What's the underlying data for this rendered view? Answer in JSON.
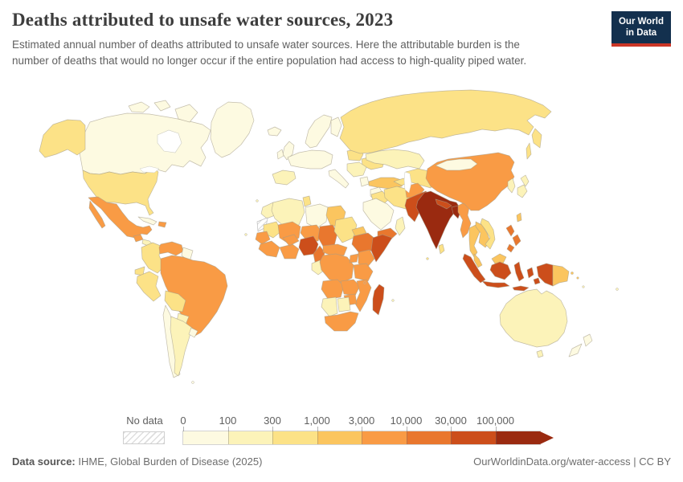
{
  "header": {
    "title": "Deaths attributed to unsafe water sources, 2023",
    "subtitle": "Estimated annual number of deaths attributed to unsafe water sources. Here the attributable burden is the number of deaths that would no longer occur if the entire population had access to high-quality piped water.",
    "logo": {
      "line1": "Our World",
      "line2": "in Data",
      "navy": "#13304e",
      "red": "#cb3626"
    }
  },
  "legend": {
    "no_data_label": "No data",
    "ticks": [
      "0",
      "100",
      "300",
      "1,000",
      "3,000",
      "10,000",
      "30,000",
      "100,000"
    ],
    "colors": [
      "#fdfae1",
      "#fcf3b9",
      "#fce287",
      "#fbc55f",
      "#f99b45",
      "#e9772e",
      "#cc4e1b",
      "#9a2a10"
    ]
  },
  "footer": {
    "source_label": "Data source:",
    "source_text": " IHME, Global Burden of Disease (2025)",
    "right_text": "OurWorldinData.org/water-access | CC BY"
  },
  "chart_data": {
    "type": "heatmap",
    "subtype": "choropleth-world-map",
    "title": "Deaths attributed to unsafe water sources, 2023",
    "unit": "deaths",
    "year": "2023",
    "legend_position": "bottom",
    "bins": [
      "0–100",
      "100–300",
      "300–1,000",
      "1,000–3,000",
      "3,000–10,000",
      "10,000–30,000",
      "30,000–100,000",
      "100,000+"
    ],
    "bin_colors": [
      "#fdfae1",
      "#fcf3b9",
      "#fce287",
      "#fbc55f",
      "#f99b45",
      "#e9772e",
      "#cc4e1b",
      "#9a2a10"
    ],
    "no_data_regions": [
      "Western Sahara"
    ],
    "regions": [
      {
        "id": "canada",
        "name": "Canada",
        "bin": 0
      },
      {
        "id": "arctic_islands",
        "name": "Canadian Arctic",
        "bin": 0
      },
      {
        "id": "greenland",
        "name": "Greenland",
        "bin": 0
      },
      {
        "id": "usa",
        "name": "United States",
        "bin": 2
      },
      {
        "id": "mexico",
        "name": "Mexico",
        "bin": 4
      },
      {
        "id": "guatemala",
        "name": "Guatemala",
        "bin": 4
      },
      {
        "id": "central_america",
        "name": "Central America",
        "bin": 1
      },
      {
        "id": "cuba",
        "name": "Cuba",
        "bin": 0
      },
      {
        "id": "hispaniola",
        "name": "Haiti & Dominican Republic",
        "bin": 4
      },
      {
        "id": "colombia",
        "name": "Colombia",
        "bin": 2
      },
      {
        "id": "venezuela",
        "name": "Venezuela",
        "bin": 4
      },
      {
        "id": "guyanas",
        "name": "Guyana & Suriname",
        "bin": 0
      },
      {
        "id": "ecuador",
        "name": "Ecuador",
        "bin": 2
      },
      {
        "id": "peru",
        "name": "Peru",
        "bin": 2
      },
      {
        "id": "brazil",
        "name": "Brazil",
        "bin": 4
      },
      {
        "id": "bolivia",
        "name": "Bolivia",
        "bin": 2
      },
      {
        "id": "paraguay",
        "name": "Paraguay",
        "bin": 1
      },
      {
        "id": "chile",
        "name": "Chile",
        "bin": 0
      },
      {
        "id": "argentina",
        "name": "Argentina",
        "bin": 1
      },
      {
        "id": "uruguay",
        "name": "Uruguay",
        "bin": 0
      },
      {
        "id": "iceland",
        "name": "Iceland",
        "bin": 0
      },
      {
        "id": "uk",
        "name": "United Kingdom",
        "bin": 0
      },
      {
        "id": "ireland",
        "name": "Ireland",
        "bin": 0
      },
      {
        "id": "scandinavia",
        "name": "Norway & Sweden",
        "bin": 0
      },
      {
        "id": "finland",
        "name": "Finland",
        "bin": 0
      },
      {
        "id": "western_europe",
        "name": "Western & Central Europe",
        "bin": 0
      },
      {
        "id": "iberia",
        "name": "Spain & Portugal",
        "bin": 1
      },
      {
        "id": "italy",
        "name": "Italy",
        "bin": 0
      },
      {
        "id": "poland",
        "name": "Poland",
        "bin": 2
      },
      {
        "id": "baltics_belarus",
        "name": "Baltics & Belarus",
        "bin": 1
      },
      {
        "id": "ukraine",
        "name": "Ukraine",
        "bin": 2
      },
      {
        "id": "balkans",
        "name": "Romania & Balkans",
        "bin": 1
      },
      {
        "id": "greece",
        "name": "Greece",
        "bin": 0
      },
      {
        "id": "turkey",
        "name": "Turkey",
        "bin": 3
      },
      {
        "id": "russia",
        "name": "Russia",
        "bin": 2
      },
      {
        "id": "kazakhstan",
        "name": "Kazakhstan",
        "bin": 1
      },
      {
        "id": "central_asia",
        "name": "Turkmenistan & Uzbekistan",
        "bin": 2
      },
      {
        "id": "kyrgyz_tajik",
        "name": "Kyrgyzstan & Tajikistan",
        "bin": 3
      },
      {
        "id": "caucasus",
        "name": "Caucasus",
        "bin": 2
      },
      {
        "id": "syria_levant",
        "name": "Syria & Levant",
        "bin": 0
      },
      {
        "id": "iraq",
        "name": "Iraq",
        "bin": 2
      },
      {
        "id": "iran",
        "name": "Iran",
        "bin": 2
      },
      {
        "id": "saudi",
        "name": "Saudi Arabia",
        "bin": 0
      },
      {
        "id": "yemen",
        "name": "Yemen",
        "bin": 5
      },
      {
        "id": "oman",
        "name": "Oman",
        "bin": 1
      },
      {
        "id": "afghanistan",
        "name": "Afghanistan",
        "bin": 4
      },
      {
        "id": "pakistan",
        "name": "Pakistan",
        "bin": 6
      },
      {
        "id": "india",
        "name": "India",
        "bin": 7
      },
      {
        "id": "nepal",
        "name": "Nepal",
        "bin": 6
      },
      {
        "id": "bangladesh",
        "name": "Bangladesh",
        "bin": 7
      },
      {
        "id": "sri_lanka",
        "name": "Sri Lanka",
        "bin": 2
      },
      {
        "id": "myanmar",
        "name": "Myanmar",
        "bin": 4
      },
      {
        "id": "thailand",
        "name": "Thailand",
        "bin": 3
      },
      {
        "id": "laos_cambodia",
        "name": "Laos & Cambodia",
        "bin": 3
      },
      {
        "id": "vietnam",
        "name": "Vietnam",
        "bin": 2
      },
      {
        "id": "malaysia",
        "name": "Malaysia",
        "bin": 3
      },
      {
        "id": "china",
        "name": "China",
        "bin": 4
      },
      {
        "id": "mongolia",
        "name": "Mongolia",
        "bin": 0
      },
      {
        "id": "korea",
        "name": "North & South Korea",
        "bin": 1
      },
      {
        "id": "japan",
        "name": "Japan",
        "bin": 1
      },
      {
        "id": "taiwan",
        "name": "Taiwan",
        "bin": 3
      },
      {
        "id": "philippines",
        "name": "Philippines",
        "bin": 5
      },
      {
        "id": "indonesia",
        "name": "Indonesia",
        "bin": 6
      },
      {
        "id": "png",
        "name": "Papua New Guinea",
        "bin": 3
      },
      {
        "id": "australia",
        "name": "Australia",
        "bin": 1
      },
      {
        "id": "nz",
        "name": "New Zealand",
        "bin": 0
      },
      {
        "id": "morocco",
        "name": "Morocco",
        "bin": 1
      },
      {
        "id": "w_sahara",
        "name": "Western Sahara",
        "bin": "no_data"
      },
      {
        "id": "algeria",
        "name": "Algeria",
        "bin": 1
      },
      {
        "id": "tunisia",
        "name": "Tunisia",
        "bin": 2
      },
      {
        "id": "libya",
        "name": "Libya",
        "bin": 0
      },
      {
        "id": "egypt",
        "name": "Egypt",
        "bin": 3
      },
      {
        "id": "mauritania",
        "name": "Mauritania",
        "bin": 2
      },
      {
        "id": "mali",
        "name": "Mali",
        "bin": 4
      },
      {
        "id": "senegal",
        "name": "Senegal & Gambia",
        "bin": 4
      },
      {
        "id": "guinea_group",
        "name": "Guinea, Sierra Leone & Liberia",
        "bin": 4
      },
      {
        "id": "cote_ghana",
        "name": "Cote d'Ivoire & Ghana",
        "bin": 4
      },
      {
        "id": "burkina",
        "name": "Burkina Faso",
        "bin": 4
      },
      {
        "id": "niger",
        "name": "Niger",
        "bin": 4
      },
      {
        "id": "nigeria",
        "name": "Nigeria",
        "bin": 6
      },
      {
        "id": "chad",
        "name": "Chad",
        "bin": 5
      },
      {
        "id": "sudan",
        "name": "Sudan",
        "bin": 2
      },
      {
        "id": "eritrea_dji",
        "name": "Eritrea & Djibouti",
        "bin": 3
      },
      {
        "id": "ethiopia",
        "name": "Ethiopia",
        "bin": 5
      },
      {
        "id": "somalia",
        "name": "Somalia",
        "bin": 6
      },
      {
        "id": "cameroon",
        "name": "Cameroon",
        "bin": 5
      },
      {
        "id": "car_ssudan",
        "name": "Central African Republic & South Sudan",
        "bin": 4
      },
      {
        "id": "gabon",
        "name": "Gabon & Equatorial Guinea",
        "bin": 1
      },
      {
        "id": "drc",
        "name": "Democratic Republic of Congo",
        "bin": 4
      },
      {
        "id": "uganda",
        "name": "Uganda",
        "bin": 4
      },
      {
        "id": "kenya",
        "name": "Kenya",
        "bin": 4
      },
      {
        "id": "tanzania",
        "name": "Tanzania",
        "bin": 4
      },
      {
        "id": "angola",
        "name": "Angola",
        "bin": 4
      },
      {
        "id": "zambia",
        "name": "Zambia",
        "bin": 4
      },
      {
        "id": "malawi_moz",
        "name": "Malawi & Mozambique",
        "bin": 4
      },
      {
        "id": "zimbabwe",
        "name": "Zimbabwe",
        "bin": 4
      },
      {
        "id": "namibia",
        "name": "Namibia",
        "bin": 1
      },
      {
        "id": "botswana",
        "name": "Botswana",
        "bin": 1
      },
      {
        "id": "south_africa",
        "name": "South Africa",
        "bin": 4
      },
      {
        "id": "madagascar",
        "name": "Madagascar",
        "bin": 6
      }
    ]
  }
}
